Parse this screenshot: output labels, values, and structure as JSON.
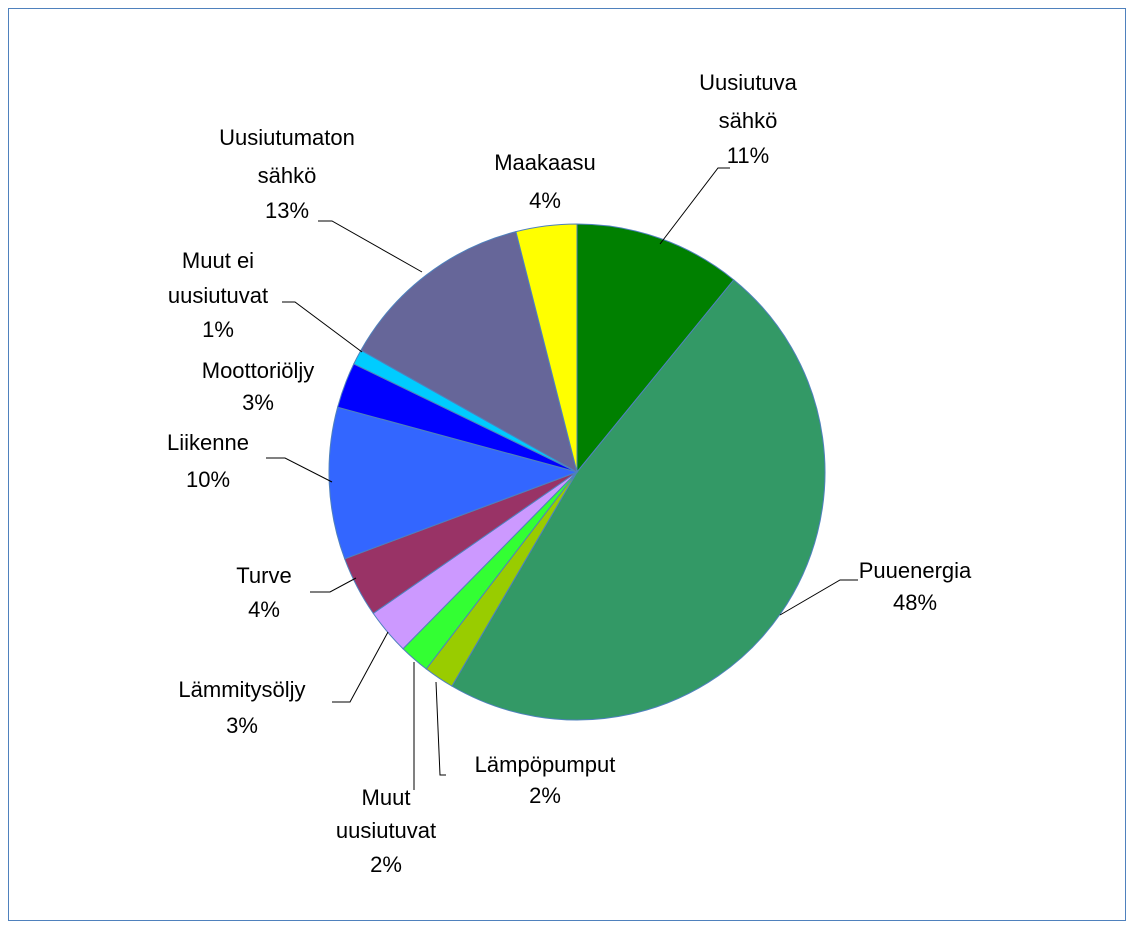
{
  "chart_data": {
    "type": "pie",
    "categories": [
      "Uusiutuva sähkö",
      "Puuenergia",
      "Lämpöpumput",
      "Muut uusiutuvat",
      "Lämmitysöljy",
      "Turve",
      "Liikenne",
      "Moottoriöljy",
      "Muut ei uusiutuvat",
      "Uusiutumaton sähkö",
      "Maakaasu"
    ],
    "values": [
      11,
      48,
      2,
      2,
      3,
      4,
      10,
      3,
      1,
      13,
      4
    ],
    "value_labels": [
      "11%",
      "48%",
      "2%",
      "2%",
      "3%",
      "4%",
      "10%",
      "3%",
      "1%",
      "13%",
      "4%"
    ],
    "colors": [
      "#008000",
      "#339966",
      "#99cc00",
      "#33ff33",
      "#cc99ff",
      "#993366",
      "#3366ff",
      "#0000ff",
      "#00ccff",
      "#666699",
      "#ffff00"
    ]
  }
}
